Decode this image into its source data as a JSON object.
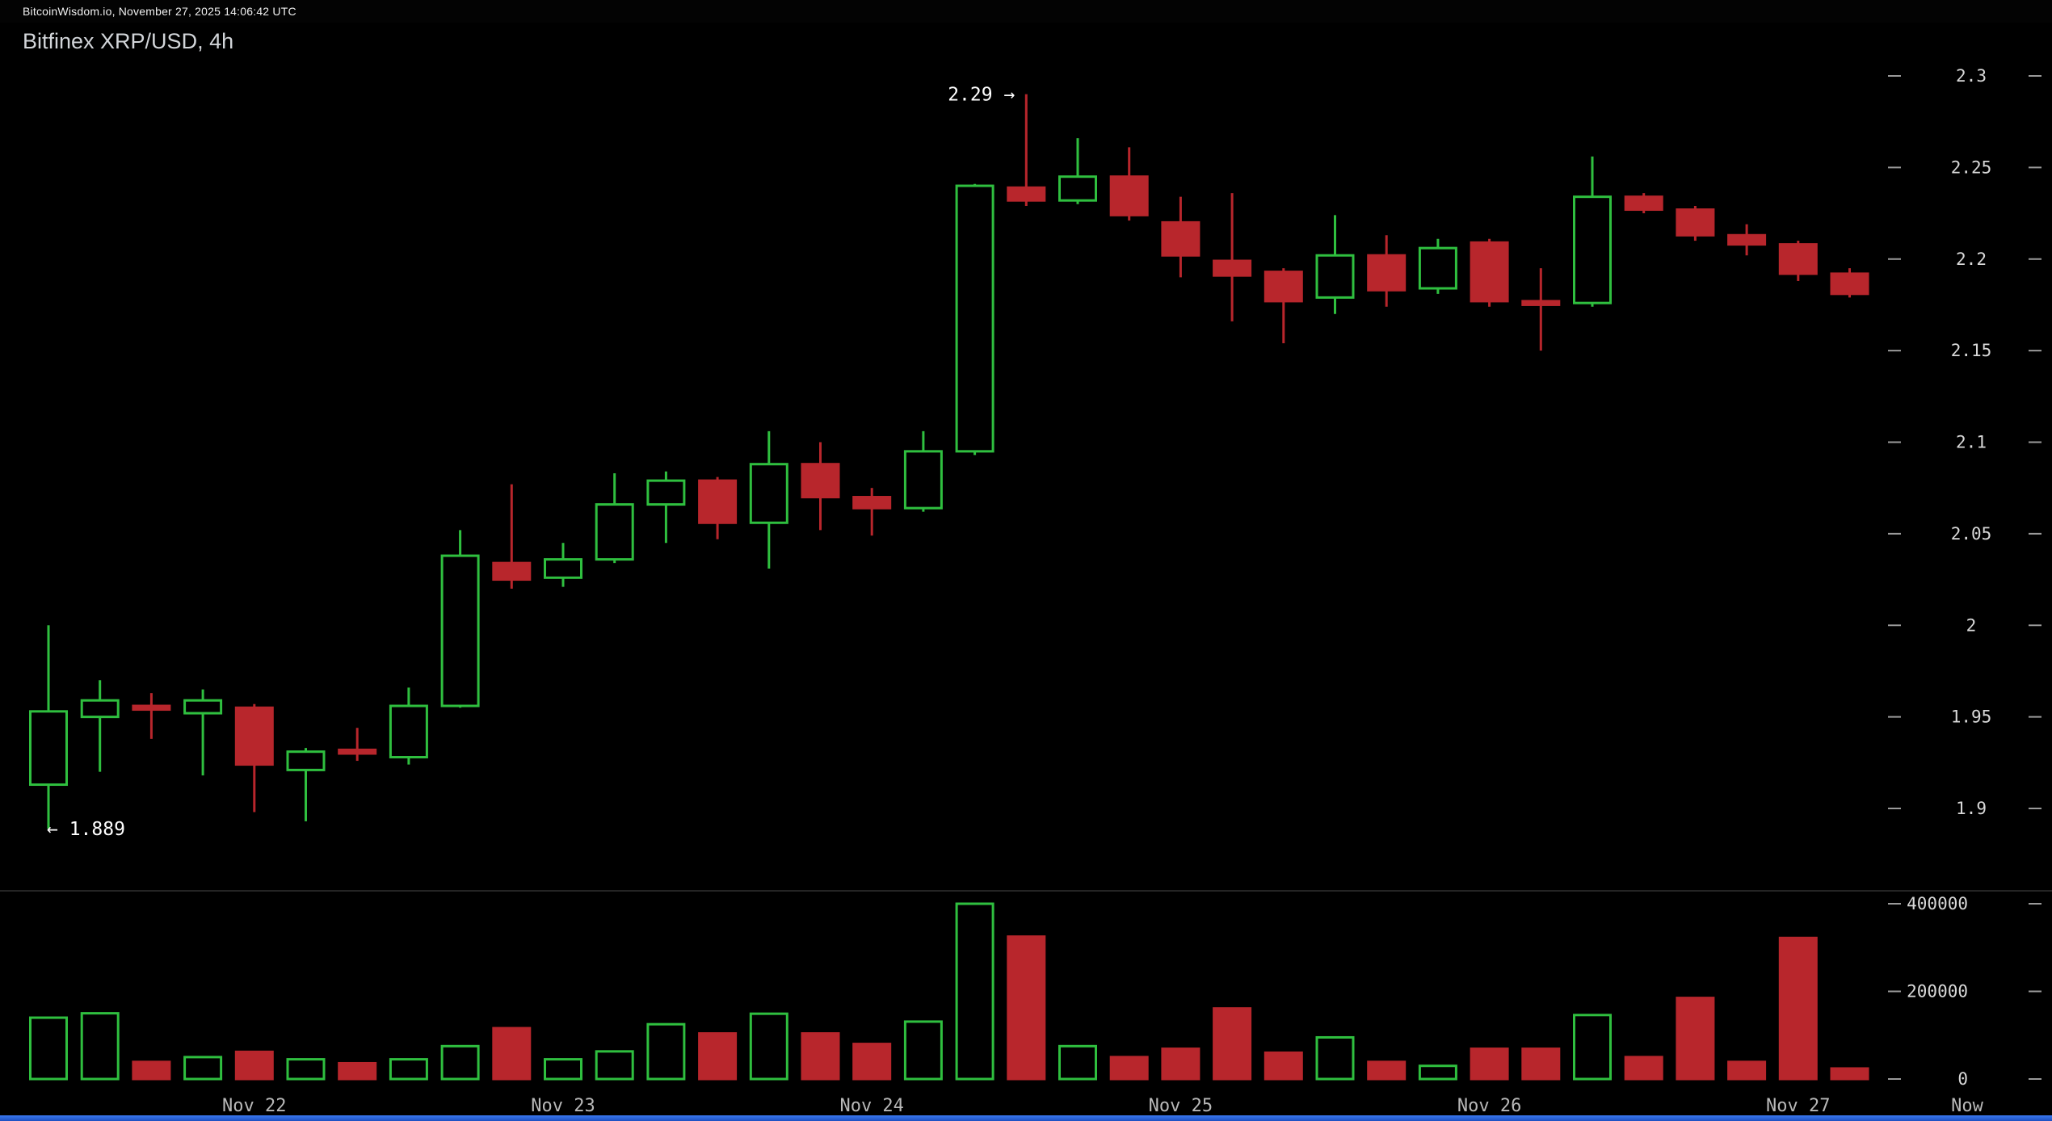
{
  "header": {
    "status_line": "BitcoinWisdom.io, November 27, 2025 14:06:42 UTC",
    "chart_title": "Bitfinex XRP/USD, 4h"
  },
  "colors": {
    "background": "#000000",
    "bullish": "#2fbf3f",
    "bearish": "#b8262c",
    "axis_text": "#d8d8d8",
    "x_axis_text": "#b8b8b8",
    "annotation_text": "#ffffff",
    "tick_dash": "#9a9a9a",
    "divider": "#242424",
    "bottom_bar": "#2a62d9"
  },
  "chart_data": {
    "type": "candlestick_with_volume",
    "title": "Bitfinex XRP/USD, 4h",
    "interval": "4h",
    "grid": false,
    "price_axis": {
      "side": "right",
      "range": [
        1.86,
        2.315
      ],
      "ticks": [
        {
          "value": 2.3,
          "label": "2.3"
        },
        {
          "value": 2.25,
          "label": "2.25"
        },
        {
          "value": 2.2,
          "label": "2.2"
        },
        {
          "value": 2.15,
          "label": "2.15"
        },
        {
          "value": 2.1,
          "label": "2.1"
        },
        {
          "value": 2.05,
          "label": "2.05"
        },
        {
          "value": 2.0,
          "label": "2"
        },
        {
          "value": 1.95,
          "label": "1.95"
        },
        {
          "value": 1.9,
          "label": "1.9"
        }
      ]
    },
    "volume_axis": {
      "side": "right",
      "range": [
        0,
        400000
      ],
      "ticks": [
        {
          "value": 400000,
          "label": "400000"
        },
        {
          "value": 200000,
          "label": "200000"
        },
        {
          "value": 0,
          "label": "0"
        }
      ]
    },
    "x_axis": {
      "day_labels": [
        {
          "label": "Nov 22",
          "index": 4
        },
        {
          "label": "Nov 23",
          "index": 10
        },
        {
          "label": "Nov 24",
          "index": 16
        },
        {
          "label": "Nov 25",
          "index": 22
        },
        {
          "label": "Nov 26",
          "index": 28
        },
        {
          "label": "Nov 27",
          "index": 34
        }
      ],
      "now_label": "Now"
    },
    "annotations": {
      "high": {
        "label": "2.29 →",
        "price": 2.29,
        "candle_index": 19
      },
      "low": {
        "label": "← 1.889",
        "price": 1.889,
        "candle_index": 0
      }
    },
    "candles": [
      {
        "o": 1.913,
        "h": 2.0,
        "l": 1.889,
        "c": 1.953,
        "v": 140000
      },
      {
        "o": 1.95,
        "h": 1.97,
        "l": 1.92,
        "c": 1.959,
        "v": 150000
      },
      {
        "o": 1.956,
        "h": 1.963,
        "l": 1.938,
        "c": 1.954,
        "v": 39000
      },
      {
        "o": 1.952,
        "h": 1.965,
        "l": 1.918,
        "c": 1.959,
        "v": 50000
      },
      {
        "o": 1.955,
        "h": 1.957,
        "l": 1.898,
        "c": 1.924,
        "v": 62000
      },
      {
        "o": 1.921,
        "h": 1.933,
        "l": 1.893,
        "c": 1.931,
        "v": 45000
      },
      {
        "o": 1.932,
        "h": 1.944,
        "l": 1.926,
        "c": 1.93,
        "v": 36000
      },
      {
        "o": 1.928,
        "h": 1.966,
        "l": 1.924,
        "c": 1.956,
        "v": 45000
      },
      {
        "o": 1.956,
        "h": 2.052,
        "l": 1.955,
        "c": 2.038,
        "v": 75000
      },
      {
        "o": 2.034,
        "h": 2.077,
        "l": 2.02,
        "c": 2.025,
        "v": 116000
      },
      {
        "o": 2.026,
        "h": 2.045,
        "l": 2.021,
        "c": 2.036,
        "v": 45000
      },
      {
        "o": 2.036,
        "h": 2.083,
        "l": 2.034,
        "c": 2.066,
        "v": 63000
      },
      {
        "o": 2.066,
        "h": 2.084,
        "l": 2.045,
        "c": 2.079,
        "v": 125000
      },
      {
        "o": 2.079,
        "h": 2.081,
        "l": 2.047,
        "c": 2.056,
        "v": 104000
      },
      {
        "o": 2.056,
        "h": 2.106,
        "l": 2.031,
        "c": 2.088,
        "v": 149000
      },
      {
        "o": 2.088,
        "h": 2.1,
        "l": 2.052,
        "c": 2.07,
        "v": 104000
      },
      {
        "o": 2.07,
        "h": 2.075,
        "l": 2.049,
        "c": 2.064,
        "v": 80000
      },
      {
        "o": 2.064,
        "h": 2.106,
        "l": 2.062,
        "c": 2.095,
        "v": 131000
      },
      {
        "o": 2.095,
        "h": 2.241,
        "l": 2.093,
        "c": 2.24,
        "v": 400000
      },
      {
        "o": 2.239,
        "h": 2.29,
        "l": 2.229,
        "c": 2.232,
        "v": 325000
      },
      {
        "o": 2.232,
        "h": 2.266,
        "l": 2.23,
        "c": 2.245,
        "v": 75000
      },
      {
        "o": 2.245,
        "h": 2.261,
        "l": 2.221,
        "c": 2.224,
        "v": 50000
      },
      {
        "o": 2.22,
        "h": 2.234,
        "l": 2.19,
        "c": 2.202,
        "v": 69000
      },
      {
        "o": 2.199,
        "h": 2.236,
        "l": 2.166,
        "c": 2.191,
        "v": 161000
      },
      {
        "o": 2.193,
        "h": 2.195,
        "l": 2.154,
        "c": 2.177,
        "v": 60000
      },
      {
        "o": 2.179,
        "h": 2.224,
        "l": 2.17,
        "c": 2.202,
        "v": 95000
      },
      {
        "o": 2.202,
        "h": 2.213,
        "l": 2.174,
        "c": 2.183,
        "v": 39000
      },
      {
        "o": 2.184,
        "h": 2.211,
        "l": 2.181,
        "c": 2.206,
        "v": 30000
      },
      {
        "o": 2.209,
        "h": 2.211,
        "l": 2.174,
        "c": 2.177,
        "v": 69000
      },
      {
        "o": 2.177,
        "h": 2.195,
        "l": 2.15,
        "c": 2.175,
        "v": 69000
      },
      {
        "o": 2.176,
        "h": 2.256,
        "l": 2.174,
        "c": 2.234,
        "v": 146000
      },
      {
        "o": 2.234,
        "h": 2.236,
        "l": 2.225,
        "c": 2.227,
        "v": 50000
      },
      {
        "o": 2.227,
        "h": 2.229,
        "l": 2.21,
        "c": 2.213,
        "v": 185000
      },
      {
        "o": 2.213,
        "h": 2.219,
        "l": 2.202,
        "c": 2.208,
        "v": 39000
      },
      {
        "o": 2.208,
        "h": 2.21,
        "l": 2.188,
        "c": 2.192,
        "v": 322000
      },
      {
        "o": 2.192,
        "h": 2.195,
        "l": 2.179,
        "c": 2.181,
        "v": 24000
      }
    ]
  }
}
